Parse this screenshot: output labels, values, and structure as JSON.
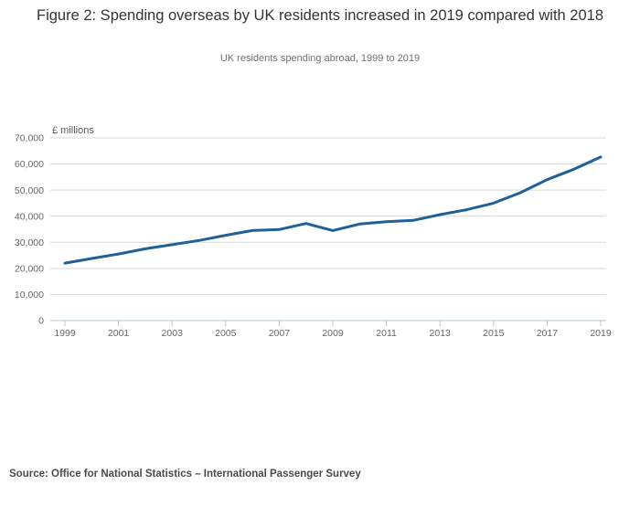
{
  "header": {
    "title": "Figure 2: Spending overseas by UK residents increased in 2019 compared with 2018",
    "subtitle": "UK residents spending abroad, 1999 to 2019"
  },
  "footer": {
    "source": "Source: Office for National Statistics – International Passenger Survey"
  },
  "chart_data": {
    "type": "line",
    "title": "Figure 2: Spending overseas by UK residents increased in 2019 compared with 2018",
    "subtitle": "UK residents spending abroad, 1999 to 2019",
    "unit_label": "£ millions",
    "x": [
      1999,
      2000,
      2001,
      2002,
      2003,
      2004,
      2005,
      2006,
      2007,
      2008,
      2009,
      2010,
      2011,
      2012,
      2013,
      2014,
      2015,
      2016,
      2017,
      2018,
      2019
    ],
    "series": [
      {
        "name": "UK residents spending abroad",
        "values": [
          22000,
          23800,
          25500,
          27500,
          29100,
          30700,
          32700,
          34500,
          34900,
          37200,
          34500,
          37000,
          37900,
          38400,
          40600,
          42500,
          45000,
          49000,
          54000,
          58000,
          62700
        ]
      }
    ],
    "ylim": [
      0,
      70000
    ],
    "ytick_step": 10000,
    "xticks": [
      1999,
      2001,
      2003,
      2005,
      2007,
      2009,
      2011,
      2013,
      2015,
      2017,
      2019
    ],
    "grid": "horizontal",
    "legend": "none",
    "colors": {
      "line": "#206095",
      "grid": "#d9d9d9",
      "axis": "#b4c8d2",
      "tick_label": "#666666",
      "unit_label": "#595959"
    }
  }
}
